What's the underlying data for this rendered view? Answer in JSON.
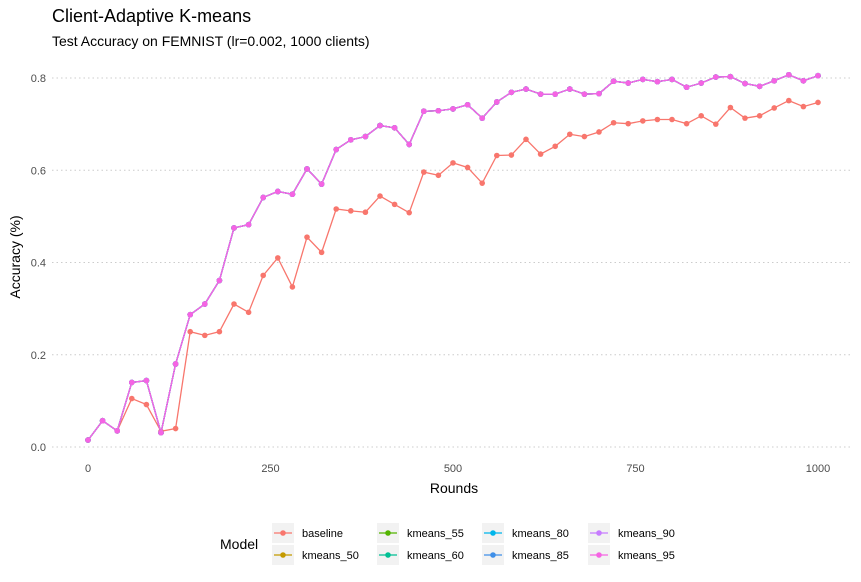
{
  "chart_data": {
    "type": "line",
    "title": "Client-Adaptive K-means",
    "subtitle": "Test Accuracy on FEMNIST (lr=0.002, 1000 clients)",
    "xlabel": "Rounds",
    "ylabel": "Accuracy (%)",
    "xlim": [
      0,
      1000
    ],
    "ylim": [
      0,
      0.8
    ],
    "xticks": [
      0,
      250,
      500,
      750,
      1000
    ],
    "yticks": [
      0.0,
      0.2,
      0.4,
      0.6,
      0.8
    ],
    "xtick_labels": [
      "0",
      "250",
      "500",
      "750",
      "1000"
    ],
    "ytick_labels": [
      "0.0",
      "0.2",
      "0.4",
      "0.6",
      "0.8"
    ],
    "grid": "horizontal dotted",
    "legend_title": "Model",
    "legend_position": "bottom",
    "x": [
      0,
      20,
      40,
      60,
      80,
      100,
      120,
      140,
      160,
      180,
      200,
      220,
      240,
      260,
      280,
      300,
      320,
      340,
      360,
      380,
      400,
      420,
      440,
      460,
      480,
      500,
      520,
      540,
      560,
      580,
      600,
      620,
      640,
      660,
      680,
      700,
      720,
      740,
      760,
      780,
      800,
      820,
      840,
      860,
      880,
      900,
      920,
      940,
      960,
      980,
      1000
    ],
    "series": [
      {
        "name": "baseline",
        "color": "#F8766D",
        "values": [
          0.015,
          0.057,
          0.035,
          0.105,
          0.092,
          0.034,
          0.04,
          0.25,
          0.242,
          0.25,
          0.31,
          0.292,
          0.372,
          0.41,
          0.347,
          0.455,
          0.422,
          0.516,
          0.512,
          0.509,
          0.544,
          0.526,
          0.508,
          0.596,
          0.589,
          0.616,
          0.606,
          0.572,
          0.632,
          0.633,
          0.667,
          0.635,
          0.652,
          0.678,
          0.673,
          0.683,
          0.703,
          0.701,
          0.707,
          0.71,
          0.71,
          0.701,
          0.718,
          0.7,
          0.736,
          0.713,
          0.718,
          0.735,
          0.751,
          0.738,
          0.747
        ]
      },
      {
        "name": "kmeans_50",
        "color": "#C49A00",
        "values": [
          0.015,
          0.057,
          0.035,
          0.14,
          0.144,
          0.031,
          0.18,
          0.287,
          0.31,
          0.361,
          0.475,
          0.482,
          0.541,
          0.554,
          0.548,
          0.603,
          0.57,
          0.645,
          0.666,
          0.673,
          0.697,
          0.692,
          0.656,
          0.728,
          0.729,
          0.733,
          0.742,
          0.713,
          0.748,
          0.769,
          0.776,
          0.765,
          0.765,
          0.776,
          0.765,
          0.766,
          0.793,
          0.789,
          0.797,
          0.792,
          0.797,
          0.78,
          0.789,
          0.802,
          0.803,
          0.788,
          0.782,
          0.794,
          0.807,
          0.794,
          0.805
        ]
      },
      {
        "name": "kmeans_55",
        "color": "#53B400",
        "values": [
          0.015,
          0.057,
          0.035,
          0.14,
          0.144,
          0.031,
          0.18,
          0.287,
          0.31,
          0.361,
          0.475,
          0.482,
          0.541,
          0.554,
          0.548,
          0.603,
          0.57,
          0.645,
          0.666,
          0.673,
          0.697,
          0.692,
          0.656,
          0.728,
          0.729,
          0.733,
          0.742,
          0.713,
          0.748,
          0.769,
          0.776,
          0.765,
          0.765,
          0.776,
          0.765,
          0.766,
          0.793,
          0.789,
          0.797,
          0.792,
          0.797,
          0.78,
          0.789,
          0.802,
          0.803,
          0.788,
          0.782,
          0.794,
          0.807,
          0.794,
          0.805
        ]
      },
      {
        "name": "kmeans_60",
        "color": "#00C094",
        "values": [
          0.015,
          0.057,
          0.035,
          0.14,
          0.144,
          0.031,
          0.18,
          0.287,
          0.31,
          0.361,
          0.475,
          0.482,
          0.541,
          0.554,
          0.548,
          0.603,
          0.57,
          0.645,
          0.666,
          0.673,
          0.697,
          0.692,
          0.656,
          0.728,
          0.729,
          0.733,
          0.742,
          0.713,
          0.748,
          0.769,
          0.776,
          0.765,
          0.765,
          0.776,
          0.765,
          0.766,
          0.793,
          0.789,
          0.797,
          0.792,
          0.797,
          0.78,
          0.789,
          0.802,
          0.803,
          0.788,
          0.782,
          0.794,
          0.807,
          0.794,
          0.805
        ]
      },
      {
        "name": "kmeans_80",
        "color": "#00B6EB",
        "values": [
          0.015,
          0.057,
          0.035,
          0.14,
          0.144,
          0.031,
          0.18,
          0.287,
          0.31,
          0.361,
          0.475,
          0.482,
          0.541,
          0.554,
          0.548,
          0.603,
          0.57,
          0.645,
          0.666,
          0.673,
          0.697,
          0.692,
          0.656,
          0.728,
          0.729,
          0.733,
          0.742,
          0.713,
          0.748,
          0.769,
          0.776,
          0.765,
          0.765,
          0.776,
          0.765,
          0.766,
          0.793,
          0.789,
          0.797,
          0.792,
          0.797,
          0.78,
          0.789,
          0.802,
          0.803,
          0.788,
          0.782,
          0.794,
          0.807,
          0.794,
          0.805
        ]
      },
      {
        "name": "kmeans_85",
        "color": "#3F8FE8",
        "values": [
          0.015,
          0.057,
          0.035,
          0.14,
          0.144,
          0.031,
          0.18,
          0.287,
          0.31,
          0.361,
          0.475,
          0.482,
          0.541,
          0.554,
          0.548,
          0.603,
          0.57,
          0.645,
          0.666,
          0.673,
          0.697,
          0.692,
          0.656,
          0.728,
          0.729,
          0.733,
          0.742,
          0.713,
          0.748,
          0.769,
          0.776,
          0.765,
          0.765,
          0.776,
          0.765,
          0.766,
          0.793,
          0.789,
          0.797,
          0.792,
          0.797,
          0.78,
          0.789,
          0.802,
          0.803,
          0.788,
          0.782,
          0.794,
          0.807,
          0.794,
          0.805
        ]
      },
      {
        "name": "kmeans_90",
        "color": "#C77CFF",
        "values": [
          0.015,
          0.057,
          0.035,
          0.14,
          0.144,
          0.031,
          0.18,
          0.287,
          0.31,
          0.361,
          0.475,
          0.482,
          0.541,
          0.554,
          0.548,
          0.603,
          0.57,
          0.645,
          0.666,
          0.673,
          0.697,
          0.692,
          0.656,
          0.728,
          0.729,
          0.733,
          0.742,
          0.713,
          0.748,
          0.769,
          0.776,
          0.765,
          0.765,
          0.776,
          0.765,
          0.766,
          0.793,
          0.789,
          0.797,
          0.792,
          0.797,
          0.78,
          0.789,
          0.802,
          0.803,
          0.788,
          0.782,
          0.794,
          0.807,
          0.794,
          0.805
        ]
      },
      {
        "name": "kmeans_95",
        "color": "#F564E3",
        "values": [
          0.015,
          0.057,
          0.035,
          0.14,
          0.144,
          0.031,
          0.18,
          0.287,
          0.31,
          0.361,
          0.475,
          0.482,
          0.541,
          0.554,
          0.548,
          0.603,
          0.57,
          0.645,
          0.666,
          0.673,
          0.697,
          0.692,
          0.656,
          0.728,
          0.729,
          0.733,
          0.742,
          0.713,
          0.748,
          0.769,
          0.776,
          0.765,
          0.765,
          0.776,
          0.765,
          0.766,
          0.793,
          0.789,
          0.797,
          0.792,
          0.797,
          0.78,
          0.789,
          0.802,
          0.803,
          0.788,
          0.782,
          0.794,
          0.807,
          0.794,
          0.805
        ]
      }
    ]
  }
}
